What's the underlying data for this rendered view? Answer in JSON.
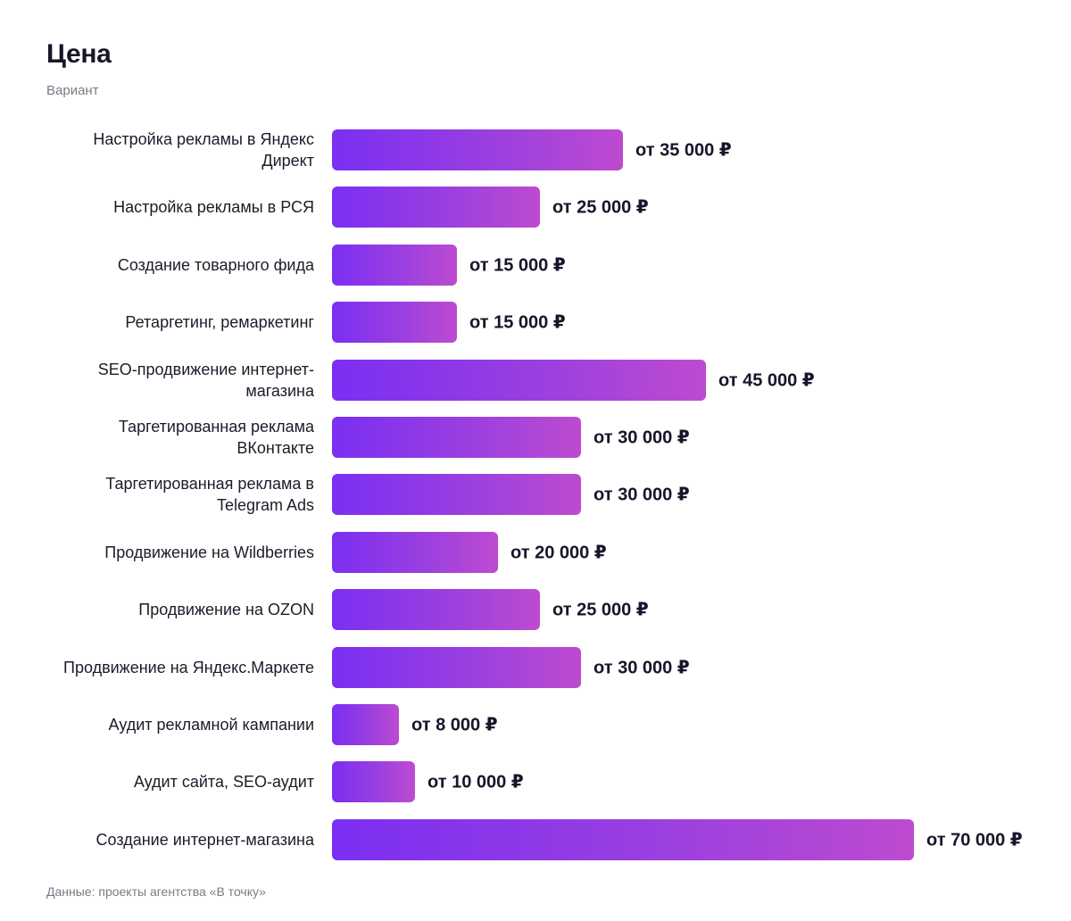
{
  "title": "Цена",
  "subtitle": "Вариант",
  "footer": "Данные: проекты агентства «В точку»",
  "colors": {
    "bar_start": "#7b2ff2",
    "bar_end": "#bd4bd0",
    "text": "#16162a",
    "muted": "#7a7a86"
  },
  "chart_data": {
    "type": "bar",
    "orientation": "horizontal",
    "title": "Цена",
    "subtitle": "Вариант",
    "categories": [
      "Настройка рекламы в Яндекс Директ",
      "Настройка рекламы в РСЯ",
      "Создание товарного фида",
      "Ретаргетинг, ремаркетинг",
      "SEO-продвижение интернет-магазина",
      "Таргетированная реклама ВКонтакте",
      "Таргетированная реклама в Telegram Ads",
      "Продвижение на Wildberries",
      "Продвижение на OZON",
      "Продвижение на Яндекс.Маркете",
      "Аудит рекламной кампании",
      "Аудит сайта, SEO-аудит",
      "Создание интернет-магазина"
    ],
    "values": [
      35000,
      25000,
      15000,
      15000,
      45000,
      30000,
      30000,
      20000,
      25000,
      30000,
      8000,
      10000,
      70000
    ],
    "value_labels": [
      "от 35 000 ₽",
      "от 25 000 ₽",
      "от 15 000 ₽",
      "от 15 000 ₽",
      "от 45 000 ₽",
      "от 30 000 ₽",
      "от 30 000 ₽",
      "от 20 000 ₽",
      "от 25 000 ₽",
      "от 30 000 ₽",
      "от 8 000 ₽",
      "от 10 000 ₽",
      "от 70 000 ₽"
    ],
    "xlim": [
      0,
      70000
    ],
    "grid": false,
    "legend": "none"
  }
}
